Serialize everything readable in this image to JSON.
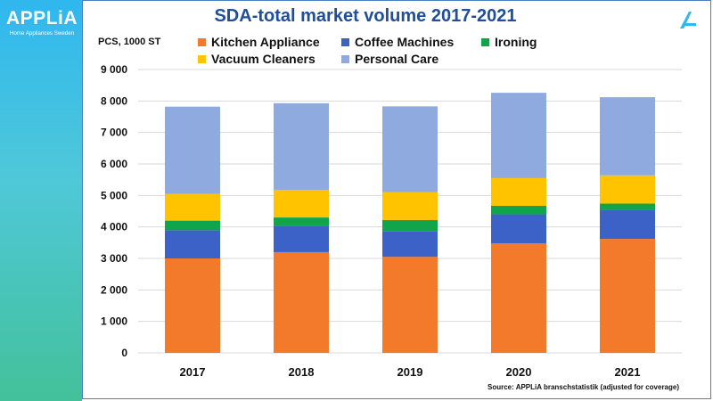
{
  "logo": {
    "word": "APPLiA",
    "sub": "Home  Appliances  Sweden"
  },
  "source": "Source: APPLiA branschstatistik (adjusted for coverage)",
  "colors": {
    "kitchen": "#f27a2a",
    "coffee": "#3c62c8",
    "ironing": "#10a54a",
    "vacuum": "#ffc300",
    "personal": "#8eaadf",
    "title": "#1f4e9a"
  },
  "chart_data": {
    "type": "bar",
    "stacked": true,
    "title": "SDA-total market volume 2017-2021",
    "ylabel": "PCS, 1000 ST",
    "xlabel": "",
    "categories": [
      "2017",
      "2018",
      "2019",
      "2020",
      "2021"
    ],
    "ylim": [
      0,
      9000
    ],
    "yticks": [
      "0",
      "1 000",
      "2 000",
      "3 000",
      "4 000",
      "5 000",
      "6 000",
      "7 000",
      "8 000",
      "9 000"
    ],
    "grid": true,
    "legend_position": "top",
    "series": [
      {
        "name": "Kitchen Appliance",
        "color": "#f27a2a",
        "values": [
          3000,
          3200,
          3050,
          3480,
          3620
        ]
      },
      {
        "name": "Coffee Machines",
        "color": "#3c62c8",
        "values": [
          900,
          830,
          820,
          920,
          920
        ]
      },
      {
        "name": "Ironing",
        "color": "#10a54a",
        "values": [
          300,
          270,
          350,
          270,
          200
        ]
      },
      {
        "name": "Vacuum Cleaners",
        "color": "#ffc300",
        "values": [
          850,
          880,
          880,
          880,
          900
        ]
      },
      {
        "name": "Personal Care",
        "color": "#8eaadf",
        "values": [
          2770,
          2750,
          2730,
          2710,
          2480
        ]
      }
    ]
  }
}
